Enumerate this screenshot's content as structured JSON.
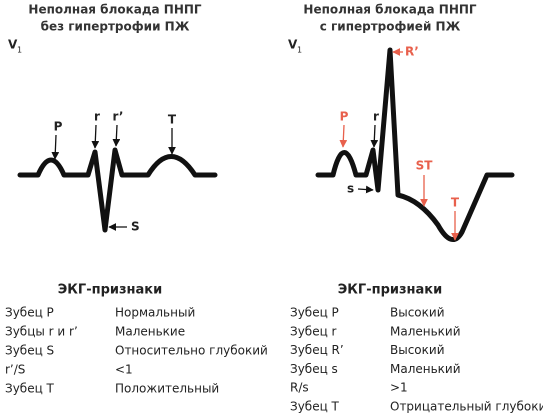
{
  "panels": [
    {
      "title": [
        "Неполная блокада ПНПГ",
        "без гипертрофии ПЖ"
      ],
      "lead": {
        "letter": "V",
        "index": "1"
      },
      "waves": [
        "P",
        "r",
        "r’",
        "S",
        "T"
      ],
      "table": {
        "header": "ЭКГ-признаки",
        "rows": [
          [
            "Зубец P",
            "Нормальный"
          ],
          [
            "Зубцы r и r’",
            "Маленькие"
          ],
          [
            "Зубец S",
            "Относительно глубокий"
          ],
          [
            "r’/S",
            "<1"
          ],
          [
            "Зубец T",
            "Положительный"
          ]
        ]
      }
    },
    {
      "title": [
        "Неполная блокада ПНПГ",
        "с гипертрофией ПЖ"
      ],
      "lead": {
        "letter": "V",
        "index": "1"
      },
      "waves": [
        "P",
        "r",
        "R’",
        "s",
        "ST",
        "T"
      ],
      "table": {
        "header": "ЭКГ-признаки",
        "rows": [
          [
            "Зубец P",
            "Высокий"
          ],
          [
            "Зубец r",
            "Маленький"
          ],
          [
            "Зубец R’",
            "Высокий"
          ],
          [
            "Зубец s",
            "Маленький"
          ],
          [
            "R/s",
            ">1"
          ],
          [
            "Зубец T",
            "Отрицательный глубокий"
          ]
        ]
      }
    }
  ]
}
